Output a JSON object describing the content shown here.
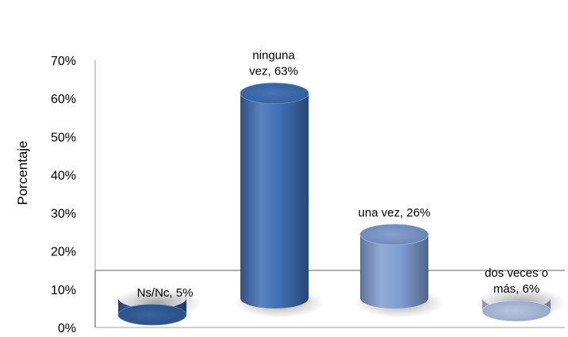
{
  "chart_data": {
    "type": "bar",
    "categories": [
      "Ns/Nc",
      "ninguna vez",
      "una vez",
      "dos veces o más"
    ],
    "values": [
      5,
      63,
      26,
      6
    ],
    "ylabel": "Porcentaje",
    "xlabel": "",
    "ylim": [
      0,
      70
    ],
    "yticks": [
      "0%",
      "10%",
      "20%",
      "30%",
      "40%",
      "50%",
      "60%",
      "70%"
    ],
    "data_labels": [
      [
        "Ns/Nc, 5%"
      ],
      [
        "ninguna",
        "vez, 63%"
      ],
      [
        "una vez, 26%"
      ],
      [
        "dos veces o",
        "más, 6%"
      ]
    ],
    "grid": false,
    "colors": [
      "#2e5b9a",
      "#3d6db3",
      "#7f9bd0",
      "#b3c2e3"
    ]
  }
}
